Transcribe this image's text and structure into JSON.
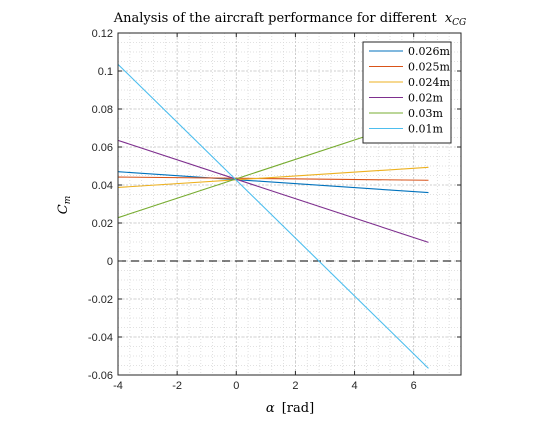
{
  "chart_data": {
    "type": "line",
    "title_prefix": "Analysis of the aircraft performance for different",
    "title_symbol": "x",
    "title_subscript": "CG",
    "xlabel_symbol": "α",
    "xlabel_unit": "[rad]",
    "ylabel_symbol": "C",
    "ylabel_subscript": "m",
    "xlim": [
      -4,
      7.6
    ],
    "ylim": [
      -0.06,
      0.12
    ],
    "xticks": [
      -4,
      -2,
      0,
      2,
      4,
      6
    ],
    "xtick_labels": [
      "-4",
      "-2",
      "0",
      "2",
      "4",
      "6"
    ],
    "yticks": [
      -0.06,
      -0.04,
      -0.02,
      0,
      0.02,
      0.04,
      0.06,
      0.08,
      0.1,
      0.12
    ],
    "ytick_labels": [
      "-0.06",
      "-0.04",
      "-0.02",
      "0",
      "0.02",
      "0.04",
      "0.06",
      "0.08",
      "0.1",
      "0.12"
    ],
    "grid": true,
    "minor_grid": true,
    "legend_position": "top-right",
    "reference_line": {
      "y": 0,
      "style": "dashed",
      "color": "#000000"
    },
    "series": [
      {
        "name": "0.026m",
        "color": "#0072BD",
        "x": [
          -4,
          6.5
        ],
        "y": [
          0.047,
          0.036
        ]
      },
      {
        "name": "0.025m",
        "color": "#D95319",
        "x": [
          -4,
          6.5
        ],
        "y": [
          0.0442,
          0.0425
        ]
      },
      {
        "name": "0.024m",
        "color": "#EDB120",
        "x": [
          -4,
          6.5
        ],
        "y": [
          0.0387,
          0.0493
        ]
      },
      {
        "name": "0.02m",
        "color": "#7E2F8E",
        "x": [
          -4,
          6.5
        ],
        "y": [
          0.0635,
          0.0098
        ]
      },
      {
        "name": "0.03m",
        "color": "#77AC30",
        "x": [
          -4,
          6.5
        ],
        "y": [
          0.0228,
          0.0765
        ]
      },
      {
        "name": "0.01m",
        "color": "#4DBEEE",
        "x": [
          -4,
          6.5
        ],
        "y": [
          0.1035,
          -0.0565
        ]
      }
    ]
  }
}
